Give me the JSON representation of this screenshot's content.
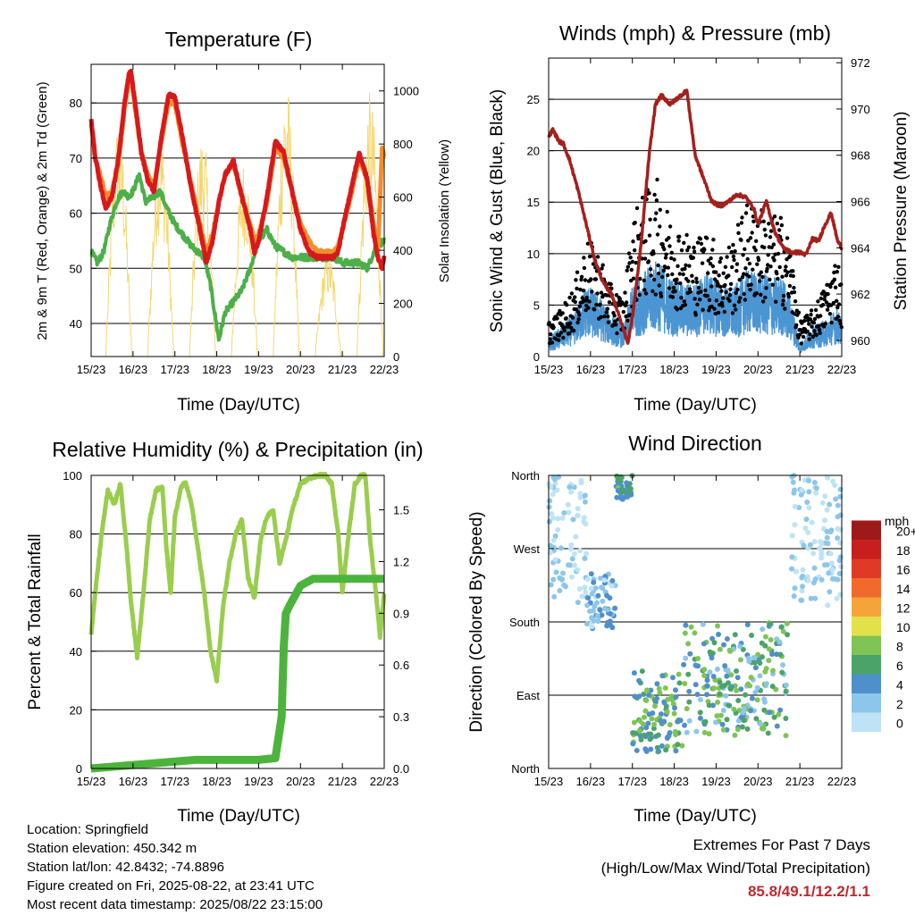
{
  "charts": {
    "temperature": {
      "title": "Temperature (F)",
      "ylabel_left": "2m & 9m T (Red, Orange) & 2m Td (Green)",
      "ylabel_right": "Solar Insolation (Yellow)",
      "xlabel": "Time (Day/UTC)"
    },
    "winds": {
      "title": "Winds (mph) & Pressure (mb)",
      "ylabel_left": "Sonic Wind & Gust (Blue, Black)",
      "ylabel_right": "Station Pressure (Maroon)",
      "xlabel": "Time (Day/UTC)"
    },
    "humidity": {
      "title": "Relative Humidity (%) & Precipitation (in)",
      "ylabel_left": "Percent & Total Rainfall",
      "xlabel": "Time (Day/UTC)"
    },
    "direction": {
      "title": "Wind Direction",
      "ylabel_left": "Direction (Colored By Speed)",
      "xlabel": "Time (Day/UTC)",
      "legend_unit": "mph"
    }
  },
  "footer": {
    "location": "Location: Springfield",
    "elevation": "Station elevation: 450.342 m",
    "latlon": "Station lat/lon: 42.8432; -74.8896",
    "created": "Figure created on Fri, 2025-08-22, at 23:41 UTC",
    "recent": "Most recent data timestamp: 2025/08/22 23:15:00"
  },
  "extremes": {
    "heading": "Extremes For Past 7 Days",
    "subheading": "(High/Low/Max Wind/Total Precipitation)",
    "values": "85.8/49.1/12.2/1.1"
  },
  "chart_data": [
    {
      "id": "temperature",
      "type": "line",
      "title": "Temperature (F)",
      "xlabel": "Time (Day/UTC)",
      "ylabel": "2m & 9m T (Red, Orange) & 2m Td (Green)",
      "y2label": "Solar Insolation (Yellow)",
      "xticks": [
        "15/23",
        "16/23",
        "17/23",
        "18/23",
        "19/23",
        "20/23",
        "21/23",
        "22/23"
      ],
      "xlim": [
        0,
        7
      ],
      "ylim": [
        34,
        87
      ],
      "yticks": [
        40,
        50,
        60,
        70,
        80
      ],
      "y2lim": [
        0,
        1100
      ],
      "y2ticks": [
        0,
        200,
        400,
        600,
        800,
        1000
      ],
      "grid": true,
      "colors": {
        "t2m": "#d7191c",
        "t9m": "#f58d2a",
        "td2m": "#4daf4a",
        "solar": "#f5d76e"
      },
      "series": [
        {
          "name": "2m T",
          "x": [
            0,
            0.1,
            0.25,
            0.35,
            0.5,
            0.65,
            0.8,
            0.9,
            0.95,
            1.05,
            1.2,
            1.35,
            1.5,
            1.7,
            1.85,
            2,
            2.2,
            2.4,
            2.6,
            2.75,
            2.9,
            3.05,
            3.2,
            3.4,
            3.6,
            3.8,
            3.9,
            4.0,
            4.2,
            4.4,
            4.6,
            4.8,
            5.0,
            5.2,
            5.4,
            5.55,
            5.7,
            5.8,
            5.9,
            6.0,
            6.2,
            6.4,
            6.6,
            6.75,
            6.85,
            6.95,
            7.0
          ],
          "y": [
            77,
            70,
            64,
            61,
            63,
            70,
            80,
            85,
            85.8,
            80,
            71,
            66,
            64,
            75,
            81.5,
            81,
            73,
            64,
            57,
            51,
            55,
            62,
            67,
            69.5,
            63,
            57,
            53,
            55,
            63,
            73,
            71,
            64,
            57,
            53,
            52,
            52,
            52,
            52,
            53,
            57,
            64,
            71,
            66,
            56,
            52,
            50,
            52
          ]
        },
        {
          "name": "9m T",
          "x": [
            0,
            0.1,
            0.25,
            0.35,
            0.5,
            0.65,
            0.8,
            0.9,
            0.95,
            1.05,
            1.2,
            1.35,
            1.5,
            1.7,
            1.85,
            2,
            2.2,
            2.4,
            2.6,
            2.75,
            2.9,
            3.05,
            3.2,
            3.4,
            3.6,
            3.8,
            3.9,
            4.0,
            4.2,
            4.4,
            4.6,
            4.8,
            5.0,
            5.2,
            5.4,
            5.55,
            5.7,
            5.8,
            5.9,
            6.0,
            6.2,
            6.4,
            6.6,
            6.75,
            6.85,
            6.95,
            7.0
          ],
          "y": [
            76,
            70,
            66,
            63,
            64,
            69,
            79,
            84,
            85,
            79,
            71,
            67,
            65,
            74,
            80,
            80,
            72,
            65,
            58,
            53,
            56,
            62,
            67,
            69,
            63,
            58,
            55,
            56,
            62,
            72,
            70,
            64,
            58,
            55,
            53,
            53,
            53,
            53,
            54,
            57,
            63,
            70,
            66,
            58,
            53,
            72,
            70
          ]
        },
        {
          "name": "2m Td",
          "x": [
            0,
            0.15,
            0.3,
            0.45,
            0.6,
            0.75,
            0.9,
            1.0,
            1.15,
            1.3,
            1.5,
            1.65,
            1.8,
            2.0,
            2.2,
            2.4,
            2.55,
            2.7,
            2.85,
            2.95,
            3.05,
            3.2,
            3.4,
            3.6,
            3.8,
            4.0,
            4.2,
            4.4,
            4.6,
            4.8,
            5.0,
            5.2,
            5.4,
            5.6,
            5.8,
            6.0,
            6.2,
            6.4,
            6.6,
            6.8,
            7.0
          ],
          "y": [
            53,
            51,
            53,
            58,
            62,
            64,
            63,
            64,
            67,
            62,
            63,
            64,
            61,
            58,
            56,
            54,
            53,
            52,
            47,
            42,
            37,
            42,
            44,
            46,
            50,
            55,
            57,
            54,
            53,
            52,
            52,
            52,
            52,
            52,
            52,
            51,
            51,
            51,
            50,
            54,
            55
          ]
        },
        {
          "name": "Solar Insolation",
          "axis": "y2",
          "days": [
            0,
            1,
            2,
            3,
            4,
            5,
            6
          ],
          "peaks": [
            900,
            850,
            850,
            750,
            1040,
            400,
            1000
          ]
        }
      ]
    },
    {
      "id": "winds",
      "type": "line",
      "title": "Winds (mph) & Pressure (mb)",
      "xlabel": "Time (Day/UTC)",
      "ylabel": "Sonic Wind & Gust (Blue, Black)",
      "y2label": "Station Pressure (Maroon)",
      "xticks": [
        "15/23",
        "16/23",
        "17/23",
        "18/23",
        "19/23",
        "20/23",
        "21/23",
        "22/23"
      ],
      "xlim": [
        0,
        7
      ],
      "ylim": [
        0,
        29
      ],
      "yticks": [
        0,
        5,
        10,
        15,
        20,
        25
      ],
      "y2lim": [
        959.3,
        972.2
      ],
      "y2ticks": [
        960,
        962,
        964,
        966,
        968,
        970,
        972
      ],
      "grid": true,
      "colors": {
        "wind": "#4b95d2",
        "gust": "#000000",
        "pressure": "#a4201d"
      },
      "series": [
        {
          "name": "Station Pressure",
          "axis": "y2",
          "x": [
            0,
            0.1,
            0.25,
            0.35,
            0.5,
            0.7,
            0.9,
            1.1,
            1.3,
            1.5,
            1.7,
            1.85,
            1.9,
            2.0,
            2.2,
            2.4,
            2.55,
            2.7,
            2.9,
            3.1,
            3.3,
            3.5,
            3.7,
            3.9,
            4.1,
            4.3,
            4.5,
            4.7,
            4.9,
            5.0,
            5.2,
            5.4,
            5.6,
            5.8,
            6.0,
            6.15,
            6.3,
            6.45,
            6.6,
            6.75,
            6.9,
            7.0
          ],
          "y": [
            968.8,
            969.1,
            968.6,
            968.5,
            967.8,
            966.5,
            965,
            963.5,
            962.5,
            962,
            961,
            960.1,
            959.9,
            961,
            964,
            968,
            970.2,
            970.6,
            970.2,
            970.5,
            970.8,
            968,
            967,
            966,
            965.8,
            966,
            966.3,
            966.2,
            965.7,
            965,
            966,
            964.7,
            964,
            963.8,
            963.8,
            963.7,
            964.4,
            964.3,
            965,
            965.5,
            964.3,
            964
          ]
        },
        {
          "name": "Sonic Wind",
          "x": [
            0,
            0.3,
            0.6,
            0.9,
            1.2,
            1.5,
            1.8,
            2.0,
            2.3,
            2.6,
            2.9,
            3.2,
            3.5,
            3.8,
            4.1,
            4.4,
            4.7,
            5.0,
            5.3,
            5.6,
            5.8,
            6.0,
            6.3,
            6.6,
            6.9,
            7.0
          ],
          "y": [
            1.5,
            2.5,
            3.5,
            6,
            5,
            3.5,
            2.5,
            6,
            7,
            8,
            6.5,
            6,
            6,
            7,
            6,
            5.5,
            7,
            7,
            6.5,
            6.5,
            4.5,
            1,
            2.5,
            3,
            4,
            3
          ]
        },
        {
          "name": "Gust",
          "x": [
            0,
            0.3,
            0.6,
            0.9,
            1.2,
            1.5,
            1.8,
            2.0,
            2.3,
            2.6,
            2.9,
            3.2,
            3.5,
            3.8,
            4.1,
            4.4,
            4.7,
            5.0,
            5.3,
            5.6,
            5.8,
            6.0,
            6.3,
            6.6,
            6.9,
            7.0
          ],
          "y": [
            3,
            4,
            6,
            10,
            9,
            6,
            5,
            12,
            14,
            15,
            12,
            11,
            10,
            11,
            9,
            10,
            13,
            13,
            12,
            12,
            9,
            3,
            4,
            6,
            9,
            6
          ]
        }
      ]
    },
    {
      "id": "humidity",
      "type": "line",
      "title": "Relative Humidity (%) & Precipitation (in)",
      "xlabel": "Time (Day/UTC)",
      "ylabel": "Percent & Total Rainfall",
      "xticks": [
        "15/23",
        "16/23",
        "17/23",
        "18/23",
        "19/23",
        "20/23",
        "21/23",
        "22/23"
      ],
      "xlim": [
        0,
        7
      ],
      "ylim": [
        0,
        100
      ],
      "yticks": [
        0,
        20,
        40,
        60,
        80,
        100
      ],
      "y2lim": [
        0,
        1.7
      ],
      "y2ticks": [
        0.0,
        0.3,
        0.6,
        0.9,
        1.2,
        1.5
      ],
      "grid": true,
      "colors": {
        "rh": "#9acd4e",
        "precip": "#4cb43c"
      },
      "series": [
        {
          "name": "Relative Humidity",
          "x": [
            0,
            0.1,
            0.25,
            0.4,
            0.55,
            0.7,
            0.85,
            0.95,
            1.1,
            1.25,
            1.4,
            1.55,
            1.7,
            1.8,
            1.9,
            2.0,
            2.15,
            2.25,
            2.4,
            2.55,
            2.7,
            2.85,
            3.0,
            3.15,
            3.3,
            3.45,
            3.6,
            3.75,
            3.9,
            4.05,
            4.2,
            4.35,
            4.5,
            4.65,
            4.8,
            5.0,
            5.2,
            5.45,
            5.6,
            5.75,
            5.9,
            6.0,
            6.15,
            6.3,
            6.45,
            6.55,
            6.65,
            6.8,
            6.9,
            7.0
          ],
          "y": [
            46,
            60,
            80,
            95,
            90,
            97,
            75,
            57,
            38,
            60,
            85,
            95,
            96,
            75,
            60,
            86,
            96,
            98,
            90,
            75,
            60,
            40,
            30,
            55,
            70,
            80,
            85,
            65,
            58,
            78,
            86,
            88,
            70,
            78,
            88,
            97,
            99,
            100,
            100,
            97,
            80,
            60,
            80,
            97,
            100,
            100,
            80,
            60,
            45,
            60
          ]
        },
        {
          "name": "Total Rainfall",
          "axis": "y2",
          "x": [
            0,
            0.5,
            1.0,
            1.5,
            2.0,
            2.5,
            3.0,
            3.5,
            4.0,
            4.4,
            4.55,
            4.6,
            4.65,
            4.75,
            5.0,
            5.3,
            5.6,
            6.0,
            6.5,
            7.0
          ],
          "y": [
            0,
            0.01,
            0.02,
            0.03,
            0.04,
            0.05,
            0.05,
            0.05,
            0.05,
            0.06,
            0.3,
            0.7,
            0.9,
            0.95,
            1.06,
            1.1,
            1.1,
            1.1,
            1.1,
            1.1
          ]
        }
      ]
    },
    {
      "id": "direction",
      "type": "scatter",
      "title": "Wind Direction",
      "xlabel": "Time (Day/UTC)",
      "ylabel": "Direction (Colored By Speed)",
      "xticks": [
        "15/23",
        "16/23",
        "17/23",
        "18/23",
        "19/23",
        "20/23",
        "21/23",
        "22/23"
      ],
      "xlim": [
        0,
        7
      ],
      "yticks": [
        "North",
        "East",
        "South",
        "West",
        "North"
      ],
      "ylim": [
        0,
        360
      ],
      "grid": true,
      "legend": {
        "unit": "mph",
        "labels": [
          "0",
          "2",
          "4",
          "6",
          "8",
          "10",
          "12",
          "14",
          "16",
          "18",
          "20+"
        ],
        "colors": [
          "#bde3f5",
          "#8cc6ea",
          "#4f8fcb",
          "#4ba36a",
          "#7fc454",
          "#e3e14a",
          "#f5a43a",
          "#ef6a2b",
          "#de3a25",
          "#c81e1e",
          "#9e1a1a"
        ]
      },
      "clusters": [
        {
          "x": [
            0,
            0.9
          ],
          "dir": [
            200,
            360
          ],
          "speed": [
            0,
            4
          ]
        },
        {
          "x": [
            0.9,
            1.6
          ],
          "dir": [
            170,
            240
          ],
          "speed": [
            1,
            6
          ]
        },
        {
          "x": [
            1.6,
            2.0
          ],
          "dir": [
            330,
            360
          ],
          "speed": [
            4,
            9
          ]
        },
        {
          "x": [
            2.0,
            3.2
          ],
          "dir": [
            20,
            120
          ],
          "speed": [
            4,
            10
          ]
        },
        {
          "x": [
            3.2,
            5.7
          ],
          "dir": [
            40,
            180
          ],
          "speed": [
            2,
            10
          ]
        },
        {
          "x": [
            5.8,
            7.0
          ],
          "dir": [
            200,
            360
          ],
          "speed": [
            0,
            4
          ]
        }
      ]
    }
  ]
}
